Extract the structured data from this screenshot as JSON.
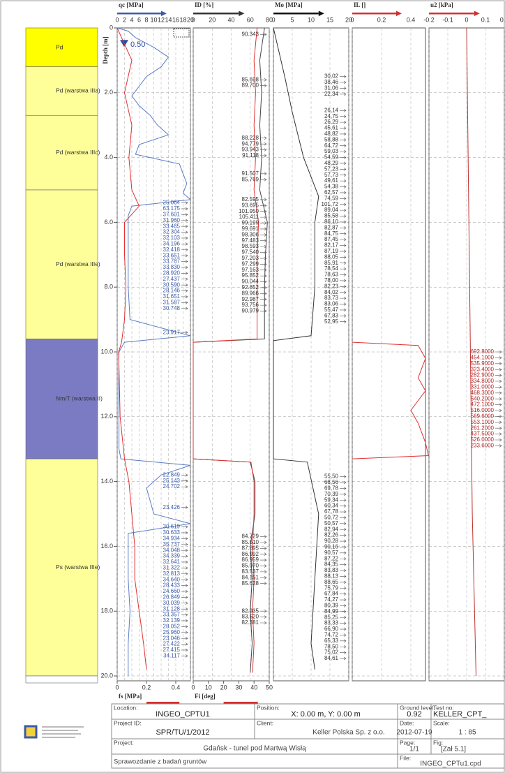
{
  "depth_axis": {
    "title": "Depth [m]",
    "ylim": [
      0,
      20
    ],
    "yticks": [
      0,
      {
        "value": 2,
        "label": "2.0"
      },
      {
        "value": 4,
        "label": "4.0"
      },
      {
        "value": 6,
        "label": "6.0"
      },
      {
        "value": 8,
        "label": "8.0"
      },
      {
        "value": 10,
        "label": "10.0"
      },
      {
        "value": 12,
        "label": "12.0"
      },
      {
        "value": 14,
        "label": "14.0"
      },
      {
        "value": 16,
        "label": "16.0"
      },
      {
        "value": 18,
        "label": "18.0"
      },
      {
        "value": 20,
        "label": "20.0"
      }
    ]
  },
  "strata": [
    {
      "label": "Pd",
      "top": 0,
      "bottom": 1.2,
      "color": "#ffff00"
    },
    {
      "label": "Pd (warstwa IIIa)",
      "top": 1.2,
      "bottom": 2.7,
      "color": "#ffff99"
    },
    {
      "label": "Pd (warstwa IIIc)",
      "top": 2.7,
      "bottom": 5.0,
      "color": "#ffff99"
    },
    {
      "label": "Pd (warstwa IIIe)",
      "top": 5.0,
      "bottom": 9.6,
      "color": "#ffff99"
    },
    {
      "label": "Nm/T (warstwa II)",
      "top": 9.6,
      "bottom": 13.3,
      "color": "#7b7bc4"
    },
    {
      "label": "Ps (warstwa IIIe)",
      "top": 13.3,
      "bottom": 20,
      "color": "#ffff99"
    }
  ],
  "chart_data": [
    {
      "type": "line",
      "title": "qc [MPa]",
      "accent": "#3b5ba9",
      "xlim": [
        0,
        20
      ],
      "xticks": [
        0,
        2,
        4,
        6,
        8,
        10,
        12,
        14,
        16,
        18,
        20
      ],
      "bottom_title": "fs [MPa]",
      "bottom_accent": "#d03030",
      "x2lim": [
        0,
        0.5
      ],
      "x2ticks": [
        0,
        0.2,
        0.4
      ],
      "water_level": {
        "value": 0.5,
        "label": "0.50"
      },
      "series": [
        {
          "color": "#5b7cc4",
          "axis": "x",
          "depth": [
            0,
            0.1,
            0.3,
            0.6,
            0.9,
            1.2,
            1.5,
            1.8,
            2.1,
            2.4,
            2.7,
            3.0,
            3.3,
            3.6,
            3.9,
            4.2,
            4.5,
            4.8,
            5.1,
            5.3,
            5.5,
            5.8,
            6.2,
            7.0,
            8.0,
            9.0,
            9.5,
            9.7,
            10.0,
            11.0,
            12.0,
            13.0,
            13.3,
            13.5,
            13.8,
            14.2,
            14.6,
            15.0,
            15.3,
            15.6,
            16.0,
            17.0,
            18.0,
            19.0,
            20.0
          ],
          "values": [
            0,
            3,
            5,
            10,
            14,
            12,
            8,
            6,
            4,
            6,
            9,
            11,
            14,
            6,
            5,
            17,
            18,
            19,
            18,
            20,
            4,
            3,
            3,
            3,
            3,
            3.5,
            20,
            2,
            0.5,
            0.4,
            0.5,
            0.5,
            1,
            20,
            12,
            8,
            9,
            10,
            20,
            3,
            3,
            3,
            3.5,
            3,
            3
          ]
        },
        {
          "color": "#e03030",
          "axis": "x2",
          "depth": [
            0,
            0.5,
            1,
            2,
            3,
            4,
            5,
            5.5,
            6,
            7,
            8,
            9,
            9.7,
            10,
            12,
            13.3,
            14,
            15,
            16,
            17,
            18,
            19,
            19.8
          ],
          "values": [
            0,
            0.05,
            0.1,
            0.05,
            0.1,
            0.08,
            0.1,
            0.15,
            0.05,
            0.05,
            0.06,
            0.05,
            0.03,
            0.01,
            0.02,
            0.05,
            0.08,
            0.1,
            0.12,
            0.12,
            0.15,
            0.18,
            0.2
          ]
        }
      ],
      "annotations": [
        {
          "depth": 5.4,
          "labels": [
            "25.064",
            "63.175",
            "37.601",
            "31.960",
            "33.465",
            "32.304",
            "32.103",
            "34.196",
            "32.418",
            "33.651",
            "33.787",
            "33.830",
            "28.920",
            "27.437",
            "30.590",
            "28.146",
            "31.651",
            "31.587",
            "30.748"
          ]
        },
        {
          "depth": 9.4,
          "labels": [
            "23.917"
          ]
        },
        {
          "depth": 13.8,
          "labels": [
            "22.849",
            "25.143",
            "24.702"
          ]
        },
        {
          "depth": 14.8,
          "labels": [
            "23.426"
          ]
        },
        {
          "depth": 15.4,
          "labels": [
            "30.619",
            "30.633",
            "34.934",
            "35.737",
            "34.048",
            "34.339",
            "32.641",
            "31.322",
            "32.813",
            "34.640",
            "28.433",
            "24.660",
            "26.849",
            "30.039",
            "31.128",
            "33.357",
            "32.139",
            "28.052",
            "25.960",
            "23.046",
            "27.422",
            "27.415",
            "34.117"
          ]
        }
      ]
    },
    {
      "type": "line",
      "title": "ID [%]",
      "accent": "#333333",
      "xlim": [
        0,
        80
      ],
      "xticks": [
        0,
        20,
        40,
        60,
        80
      ],
      "bottom_title": "Fi [deg]",
      "bottom_accent": "#d03030",
      "x2lim": [
        0,
        50
      ],
      "x2ticks": [
        0,
        10,
        20,
        30,
        40,
        50
      ],
      "series": [
        {
          "color": "#444444",
          "axis": "x",
          "depth": [
            0,
            1,
            2,
            3,
            4,
            5,
            6,
            7,
            8,
            9,
            9.6,
            9.7,
            13.3,
            13.4,
            14,
            15,
            16,
            17,
            18,
            19,
            19.9
          ],
          "values": [
            75,
            70,
            72,
            70,
            72,
            70,
            78,
            76,
            75,
            75,
            75,
            0,
            0,
            60,
            65,
            65,
            60,
            62,
            60,
            62,
            60
          ]
        },
        {
          "color": "#e03030",
          "axis": "x2",
          "depth": [
            0,
            1,
            2,
            3,
            4,
            5,
            6,
            7,
            8,
            9,
            9.6,
            9.7,
            13.3,
            13.4,
            14,
            15,
            16,
            17,
            18,
            19,
            19.9
          ],
          "values": [
            42,
            40,
            41,
            40,
            41,
            40,
            43,
            42,
            42,
            42,
            42,
            0,
            0,
            38,
            40,
            40,
            39,
            40,
            39,
            40,
            39
          ]
        }
      ],
      "annotations": [
        {
          "depth": 0.2,
          "labels": [
            "90.343"
          ]
        },
        {
          "depth": 1.6,
          "labels": [
            "85.698",
            "89.700"
          ]
        },
        {
          "depth": 3.4,
          "labels": [
            "88.228",
            "94.779",
            "93.943",
            "91.118"
          ]
        },
        {
          "depth": 4.5,
          "labels": [
            "91.507",
            "85.769"
          ]
        },
        {
          "depth": 5.3,
          "labels": [
            "82.595",
            "93.695",
            "101.950",
            "105.411",
            "99.199",
            "99.691",
            "98.306",
            "97.483",
            "98.593",
            "97.540",
            "97.203",
            "97.299",
            "97.163",
            "95.852",
            "90.044",
            "92.852",
            "89.966",
            "92.987",
            "93.756",
            "90.979"
          ]
        },
        {
          "depth": 15.7,
          "labels": [
            "84.729",
            "85.510",
            "87.695",
            "86.992",
            "86.959",
            "85.070",
            "83.537",
            "84.151",
            "85.628"
          ]
        },
        {
          "depth": 18.0,
          "labels": [
            "82.935",
            "83.520",
            "82.381"
          ]
        }
      ]
    },
    {
      "type": "line",
      "title": "Mo [MPa]",
      "accent": "#111111",
      "xlim": [
        0,
        20
      ],
      "xticks": [
        0,
        5,
        10,
        15,
        20
      ],
      "series": [
        {
          "color": "#333333",
          "axis": "x",
          "depth": [
            0,
            1.5,
            2.6,
            4,
            5.2,
            6,
            7,
            8,
            9.5,
            9.65,
            13.3,
            13.4,
            15,
            17,
            19,
            19.8
          ],
          "values": [
            0,
            3,
            5,
            8,
            12,
            11,
            11,
            11,
            10,
            0,
            0,
            9,
            12,
            11,
            10,
            11
          ]
        }
      ],
      "annotations": [
        {
          "depth": 1.5,
          "labels": [
            "30,02",
            "38,46",
            "31,06",
            "22,34"
          ]
        },
        {
          "depth": 2.55,
          "labels": [
            "26,14",
            "24,75",
            "26,29",
            "45,61",
            "48,82",
            "58,88",
            "64,72",
            "59,03",
            "54,59",
            "48,29",
            "57,23",
            "57,73",
            "49,61",
            "54,38",
            "62,57",
            "74,59",
            "101,72",
            "89,04",
            "85,58",
            "86,10",
            "82,87",
            "84,75",
            "87,45",
            "82,17",
            "87,19",
            "88,05",
            "85,91",
            "78,54",
            "78,63",
            "78,00",
            "82,23",
            "84,02",
            "83,73",
            "83,06",
            "55,47",
            "67,83",
            "52,95"
          ]
        },
        {
          "depth": 13.85,
          "labels": [
            "55,50",
            "68,56",
            "69,78",
            "70,39",
            "59,34",
            "60,34",
            "67,78",
            "50,72",
            "50,57",
            "82,94",
            "82,26",
            "90,28",
            "90,16",
            "90,57",
            "87,22",
            "84,35",
            "83,83",
            "88,13",
            "88,65",
            "75,79",
            "67,84",
            "74,27",
            "80,39",
            "84,99",
            "85,25",
            "83,33",
            "66,90",
            "74,72",
            "65,33",
            "78,50",
            "75,02",
            "84,61"
          ]
        }
      ]
    },
    {
      "type": "line",
      "title": "IL []",
      "accent": "#d03030",
      "xlim": [
        0,
        0.5
      ],
      "xticks": [
        0,
        0.2,
        0.4
      ],
      "series": [
        {
          "color": "#e03030",
          "axis": "x",
          "depth": [
            9.7,
            9.8,
            10.2,
            10.8,
            11.2,
            11.8,
            12.2,
            12.8,
            13.2,
            13.3
          ],
          "values": [
            0,
            0.45,
            0.5,
            0.45,
            0.5,
            0.4,
            0.45,
            0.5,
            0.52,
            0
          ]
        }
      ],
      "annotations": []
    },
    {
      "type": "line",
      "title": "u2 [kPa]",
      "accent": "#d03030",
      "xlim": [
        -0.2,
        0.2
      ],
      "xticks": [
        -0.2,
        -0.1,
        0,
        0.1,
        0.2
      ],
      "series": [
        {
          "color": "#c03030",
          "axis": "x",
          "depth": [
            0,
            5,
            10,
            15,
            20
          ],
          "values": [
            0,
            0.01,
            0.02,
            0.03,
            0.05
          ]
        }
      ],
      "annotations": [
        {
          "depth": 10.0,
          "labels": [
            "692.8000",
            "454.1000",
            "535.9000",
            "323.4000",
            "282.9000",
            "334.8000",
            "331.0000",
            "468.3000",
            "540.2000",
            "472.1000",
            "516.0000",
            "569.6000",
            "553.1000",
            "261.2000",
            "437.5000",
            "526.0000",
            "233.6000"
          ]
        }
      ]
    }
  ],
  "footer": {
    "location": {
      "label": "Location:",
      "value": "INGEO_CPTU1"
    },
    "position": {
      "label": "Position:",
      "value": "X: 0.00 m, Y: 0.00 m"
    },
    "ground_level": {
      "label": "Ground level:",
      "value": "0.92"
    },
    "test_no": {
      "label": "Test no:",
      "value": "KELLER_CPT_"
    },
    "project_id": {
      "label": "Project ID:",
      "value": "SPR/TU/1/2012"
    },
    "client": {
      "label": "Client:",
      "value": "Keller Polska Sp. z o.o."
    },
    "date": {
      "label": "Date:",
      "value": "2012-07-19"
    },
    "scale": {
      "label": "Scale:",
      "value": "1 : 85"
    },
    "project": {
      "label": "Project:",
      "value": "Gdańsk - tunel pod Martwą Wisłą"
    },
    "page": {
      "label": "Page:",
      "value": "1/1"
    },
    "fig": {
      "label": "Fig:",
      "value": "[Zał 5.1]"
    },
    "report": "Sprawozdanie z badań gruntów",
    "file": {
      "label": "File:",
      "value": "INGEO_CPTu1.cpd"
    }
  }
}
